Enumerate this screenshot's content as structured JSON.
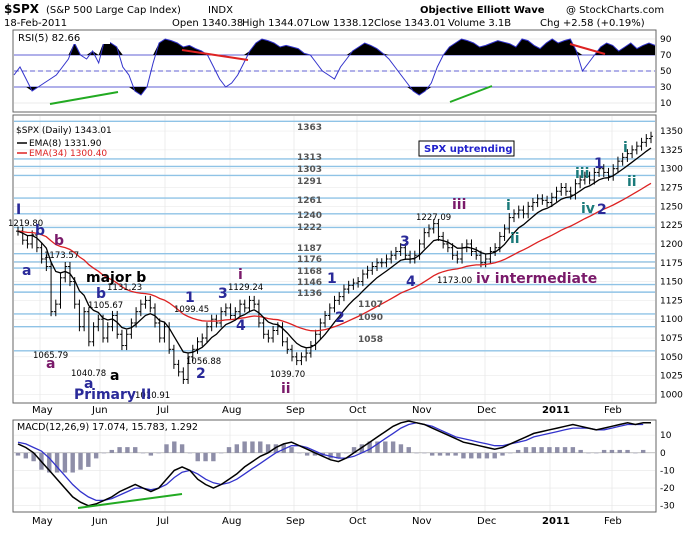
{
  "header": {
    "symbol": "$SPX",
    "name": "(S&P 500 Large Cap Index)",
    "exchange": "INDX",
    "brand": "Objective Elliott Wave",
    "copyright": "@ StockCharts.com",
    "date": "18-Feb-2011",
    "open": "Open 1340.38",
    "high": "High 1344.07",
    "low": "Low 1338.12",
    "close": "Close 1343.01",
    "volume": "Volume 3.1B",
    "change": "Chg +2.58 (+0.19%)"
  },
  "months": [
    "May",
    "Jun",
    "Jul",
    "Aug",
    "Sep",
    "Oct",
    "Nov",
    "Dec",
    "2011",
    "Feb"
  ],
  "rsi": {
    "label": "RSI(5) 82.66",
    "ticks": [
      90,
      70,
      50,
      30,
      10
    ],
    "levels": [
      70,
      50,
      30
    ],
    "values": [
      45,
      55,
      40,
      25,
      30,
      35,
      40,
      45,
      55,
      65,
      85,
      70,
      65,
      75,
      60,
      90,
      85,
      80,
      55,
      45,
      25,
      20,
      30,
      60,
      85,
      90,
      88,
      85,
      80,
      82,
      78,
      75,
      70,
      55,
      40,
      30,
      35,
      45,
      60,
      75,
      85,
      90,
      88,
      85,
      80,
      82,
      80,
      78,
      72,
      70,
      60,
      50,
      45,
      40,
      55,
      65,
      75,
      80,
      85,
      82,
      78,
      72,
      65,
      55,
      45,
      35,
      25,
      20,
      25,
      35,
      55,
      70,
      80,
      85,
      90,
      88,
      85,
      80,
      82,
      85,
      88,
      86,
      84,
      80,
      90,
      88,
      82,
      78,
      85,
      90,
      85,
      88,
      90,
      75,
      50,
      60,
      70,
      80,
      85,
      82,
      75,
      80,
      85,
      78,
      82,
      85,
      82
    ]
  },
  "price": {
    "legend_title": "$SPX (Daily) 1343.01",
    "ema8_label": "EMA(8) 1331.90",
    "ema34_label": "EMA(34) 1300.40",
    "ticks": [
      1000,
      1025,
      1050,
      1075,
      1100,
      1125,
      1150,
      1175,
      1200,
      1225,
      1250,
      1275,
      1300,
      1325,
      1350
    ],
    "hlines": [
      1058,
      1090,
      1107,
      1136,
      1146,
      1168,
      1176,
      1187,
      1222,
      1240,
      1261,
      1291,
      1303,
      1313,
      1363
    ],
    "close_series": [
      1217,
      1205,
      1200,
      1212,
      1195,
      1180,
      1170,
      1110,
      1120,
      1155,
      1170,
      1150,
      1120,
      1090,
      1110,
      1070,
      1090,
      1100,
      1075,
      1090,
      1105,
      1080,
      1065,
      1080,
      1095,
      1110,
      1120,
      1125,
      1115,
      1095,
      1075,
      1090,
      1060,
      1040,
      1030,
      1020,
      1050,
      1060,
      1070,
      1075,
      1090,
      1100,
      1095,
      1110,
      1115,
      1105,
      1110,
      1120,
      1115,
      1125,
      1120,
      1095,
      1080,
      1075,
      1085,
      1090,
      1070,
      1060,
      1050,
      1045,
      1050,
      1055,
      1065,
      1080,
      1095,
      1105,
      1115,
      1125,
      1130,
      1140,
      1145,
      1148,
      1150,
      1160,
      1165,
      1170,
      1175,
      1175,
      1180,
      1185,
      1190,
      1195,
      1185,
      1180,
      1185,
      1200,
      1215,
      1220,
      1227,
      1210,
      1200,
      1195,
      1185,
      1180,
      1195,
      1200,
      1190,
      1185,
      1175,
      1180,
      1190,
      1195,
      1210,
      1220,
      1235,
      1240,
      1245,
      1240,
      1250,
      1255,
      1260,
      1258,
      1255,
      1262,
      1270,
      1275,
      1270,
      1265,
      1280,
      1285,
      1290,
      1285,
      1295,
      1300,
      1295,
      1290,
      1300,
      1310,
      1315,
      1320,
      1325,
      1330,
      1335,
      1340,
      1343
    ]
  },
  "price_annotations": {
    "levels": [
      "1363",
      "1313",
      "1303",
      "1291",
      "1261",
      "1240",
      "1222",
      "1187",
      "1176",
      "1168",
      "1146",
      "1136",
      "1107",
      "1090",
      "1058"
    ],
    "prices": [
      "1219.80",
      "1173.57",
      "1131.23",
      "1105.67",
      "1099.45",
      "1129.24",
      "1227.09",
      "1065.79",
      "1040.78",
      "1056.88",
      "1010.91",
      "1039.70",
      "1173.00"
    ],
    "waves_major": [
      "major b",
      "Primary II",
      "iv intermediate"
    ],
    "waves_minor": [
      "1",
      "2",
      "3",
      "4",
      "i",
      "ii",
      "iii",
      "b",
      "a",
      "a",
      "b",
      "a",
      "a",
      "b"
    ],
    "trend_box": "SPX uptrending"
  },
  "macd": {
    "label": "MACD(12,26,9) 17.074, 15.783, 1.292",
    "ticks": [
      10,
      0,
      -10,
      -20,
      -30
    ],
    "macd_series": [
      5,
      3,
      0,
      -5,
      -10,
      -15,
      -20,
      -25,
      -28,
      -30,
      -29,
      -27,
      -25,
      -22,
      -20,
      -18,
      -20,
      -22,
      -20,
      -15,
      -10,
      -8,
      -10,
      -15,
      -18,
      -20,
      -18,
      -15,
      -12,
      -8,
      -5,
      -2,
      0,
      3,
      5,
      6,
      4,
      2,
      0,
      -2,
      -4,
      -5,
      -3,
      0,
      3,
      6,
      9,
      12,
      15,
      17,
      18,
      17,
      16,
      14,
      12,
      10,
      8,
      6,
      5,
      4,
      3,
      2,
      3,
      5,
      7,
      9,
      11,
      12,
      13,
      14,
      15,
      16,
      15,
      14,
      13,
      14,
      15,
      16,
      17,
      16,
      17,
      17
    ],
    "signal_series": [
      6,
      5,
      3,
      1,
      -3,
      -8,
      -13,
      -18,
      -22,
      -25,
      -27,
      -27,
      -26,
      -24,
      -22,
      -20,
      -20,
      -21,
      -20,
      -18,
      -14,
      -11,
      -10,
      -12,
      -15,
      -17,
      -18,
      -17,
      -15,
      -12,
      -9,
      -6,
      -3,
      0,
      2,
      4,
      4,
      3,
      1,
      -1,
      -2,
      -3,
      -3,
      -2,
      0,
      2,
      5,
      8,
      11,
      14,
      16,
      17,
      16,
      15,
      13,
      11,
      9,
      8,
      7,
      6,
      5,
      4,
      4,
      5,
      6,
      7,
      9,
      10,
      11,
      12,
      13,
      14,
      14,
      14,
      13,
      13,
      14,
      15,
      16,
      16,
      16
    ]
  }
}
